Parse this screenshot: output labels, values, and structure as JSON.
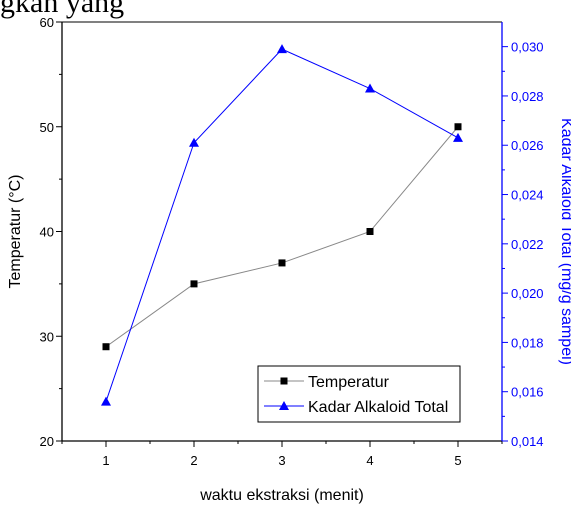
{
  "caption": "gkan yang",
  "chart_data": {
    "type": "line",
    "categories": [
      "1",
      "2",
      "3",
      "4",
      "5"
    ],
    "x": [
      1,
      2,
      3,
      4,
      5
    ],
    "xlabel": "waktu ekstraksi (menit)",
    "ylabel_left": "Temperatur (°C)",
    "ylabel_right": "Kadar Alkaloid Total (mg/g sampel)",
    "xlim": [
      0.5,
      5.5
    ],
    "ylim_left": [
      20,
      60
    ],
    "ylim_right": [
      0.014,
      0.031
    ],
    "yticks_left": [
      "20",
      "30",
      "40",
      "50",
      "60"
    ],
    "yticks_right": [
      "0,014",
      "0,016",
      "0,018",
      "0,020",
      "0,022",
      "0,024",
      "0,026",
      "0,028",
      "0,030"
    ],
    "yticks_right_values": [
      0.014,
      0.016,
      0.018,
      0.02,
      0.022,
      0.024,
      0.026,
      0.028,
      0.03
    ],
    "series": [
      {
        "name": "Temperatur",
        "axis": "left",
        "values": [
          29,
          35,
          37,
          40,
          50
        ],
        "color": "#000000",
        "line_color": "#888888",
        "marker": "square"
      },
      {
        "name": "Kadar Alkaloid Total",
        "axis": "right",
        "values": [
          0.0156,
          0.0261,
          0.0299,
          0.0283,
          0.0263
        ],
        "color": "#0000ff",
        "line_color": "#0000ff",
        "marker": "triangle"
      }
    ],
    "legend_position": "bottom-right",
    "grid": false,
    "left_axis_color": "#000000",
    "right_axis_color": "#0000ff"
  }
}
